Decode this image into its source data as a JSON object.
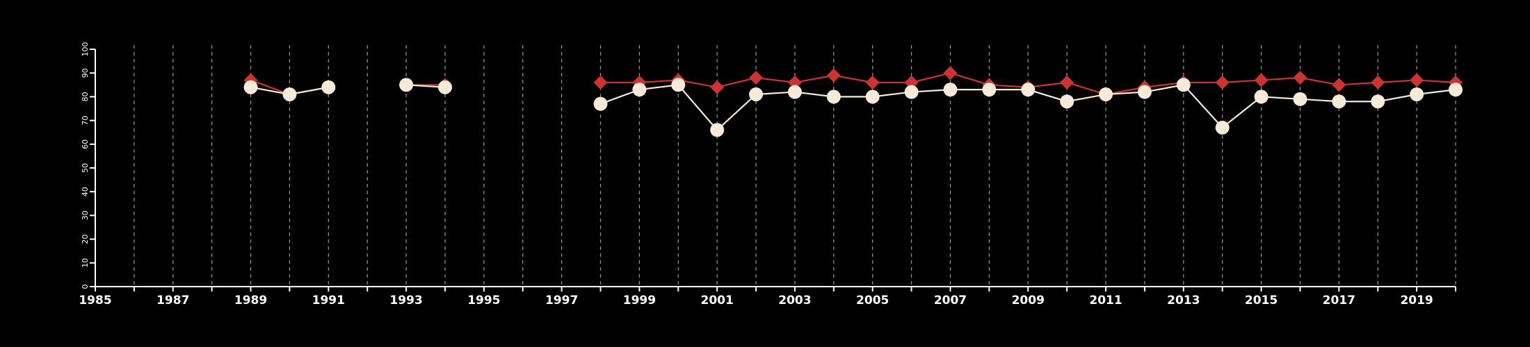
{
  "chart_data": {
    "type": "line",
    "title": "",
    "xlabel": "",
    "ylabel": "",
    "xlim": [
      1985,
      2020
    ],
    "ylim": [
      0,
      100
    ],
    "yticks": [
      0,
      10,
      20,
      30,
      40,
      50,
      60,
      70,
      80,
      90,
      100
    ],
    "xtick_labels": [
      "1985",
      "1987",
      "1989",
      "1991",
      "1993",
      "1995",
      "1997",
      "1999",
      "2001",
      "2003",
      "2005",
      "2007",
      "2009",
      "2011",
      "2013",
      "2015",
      "2017",
      "2019"
    ],
    "grid": "vertical dashed at every year",
    "background": "#000000",
    "series": [
      {
        "color": "#cc3333",
        "marker": "diamond",
        "points": [
          [
            1989,
            87
          ],
          [
            1990,
            81
          ],
          [
            1991,
            84
          ],
          [
            1993,
            85
          ],
          [
            1994,
            85
          ],
          [
            1998,
            86
          ],
          [
            1999,
            86
          ],
          [
            2000,
            87
          ],
          [
            2001,
            84
          ],
          [
            2002,
            88
          ],
          [
            2003,
            86
          ],
          [
            2004,
            89
          ],
          [
            2005,
            86
          ],
          [
            2006,
            86
          ],
          [
            2007,
            90
          ],
          [
            2008,
            85
          ],
          [
            2009,
            84
          ],
          [
            2010,
            86
          ],
          [
            2011,
            81
          ],
          [
            2012,
            84
          ],
          [
            2013,
            86
          ],
          [
            2014,
            86
          ],
          [
            2015,
            87
          ],
          [
            2016,
            88
          ],
          [
            2017,
            85
          ],
          [
            2018,
            86
          ],
          [
            2019,
            87
          ],
          [
            2020,
            86
          ]
        ]
      },
      {
        "color": "#f7ead8",
        "marker": "circle",
        "points": [
          [
            1989,
            84
          ],
          [
            1990,
            81
          ],
          [
            1991,
            84
          ],
          [
            1993,
            85
          ],
          [
            1994,
            84
          ],
          [
            1998,
            77
          ],
          [
            1999,
            83
          ],
          [
            2000,
            85
          ],
          [
            2001,
            66
          ],
          [
            2002,
            81
          ],
          [
            2003,
            82
          ],
          [
            2004,
            80
          ],
          [
            2005,
            80
          ],
          [
            2006,
            82
          ],
          [
            2007,
            83
          ],
          [
            2008,
            83
          ],
          [
            2009,
            83
          ],
          [
            2010,
            78
          ],
          [
            2011,
            81
          ],
          [
            2012,
            82
          ],
          [
            2013,
            85
          ],
          [
            2014,
            67
          ],
          [
            2015,
            80
          ],
          [
            2016,
            79
          ],
          [
            2017,
            78
          ],
          [
            2018,
            78
          ],
          [
            2019,
            81
          ],
          [
            2020,
            83
          ]
        ]
      }
    ]
  }
}
